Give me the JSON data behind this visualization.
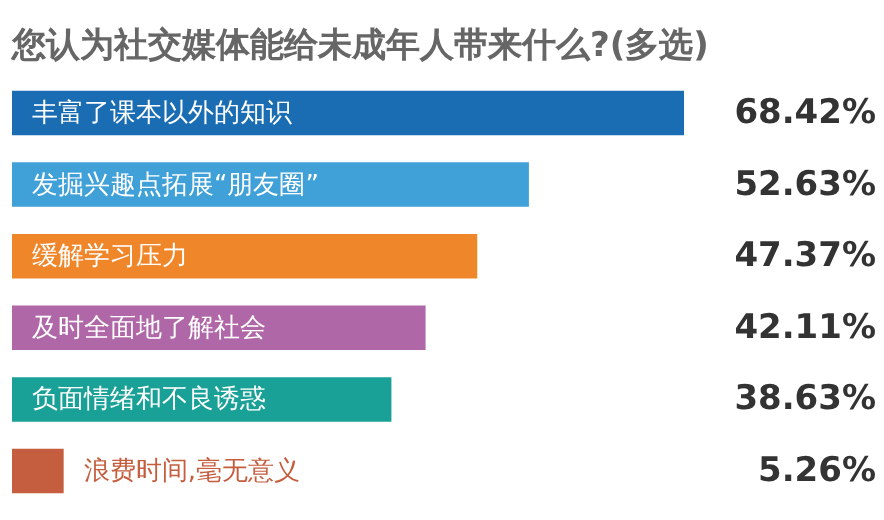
{
  "chart_data": {
    "type": "bar",
    "orientation": "horizontal",
    "title": "您认为社交媒体能给未成年人带来什么?(多选)",
    "categories": [
      "丰富了课本以外的知识",
      "发掘兴趣点拓展“朋友圈”",
      "缓解学习压力",
      "及时全面地了解社会",
      "负面情绪和不良诱惑",
      "浪费时间,毫无意义"
    ],
    "values": [
      68.42,
      52.63,
      47.37,
      42.11,
      38.63,
      5.26
    ],
    "colors": [
      "#1a6db3",
      "#40a0d8",
      "#f0862a",
      "#b067a8",
      "#1aa197",
      "#c45e3e"
    ],
    "value_labels": [
      "68.42%",
      "52.63%",
      "47.37%",
      "42.11%",
      "38.63%",
      "5.26%"
    ]
  }
}
